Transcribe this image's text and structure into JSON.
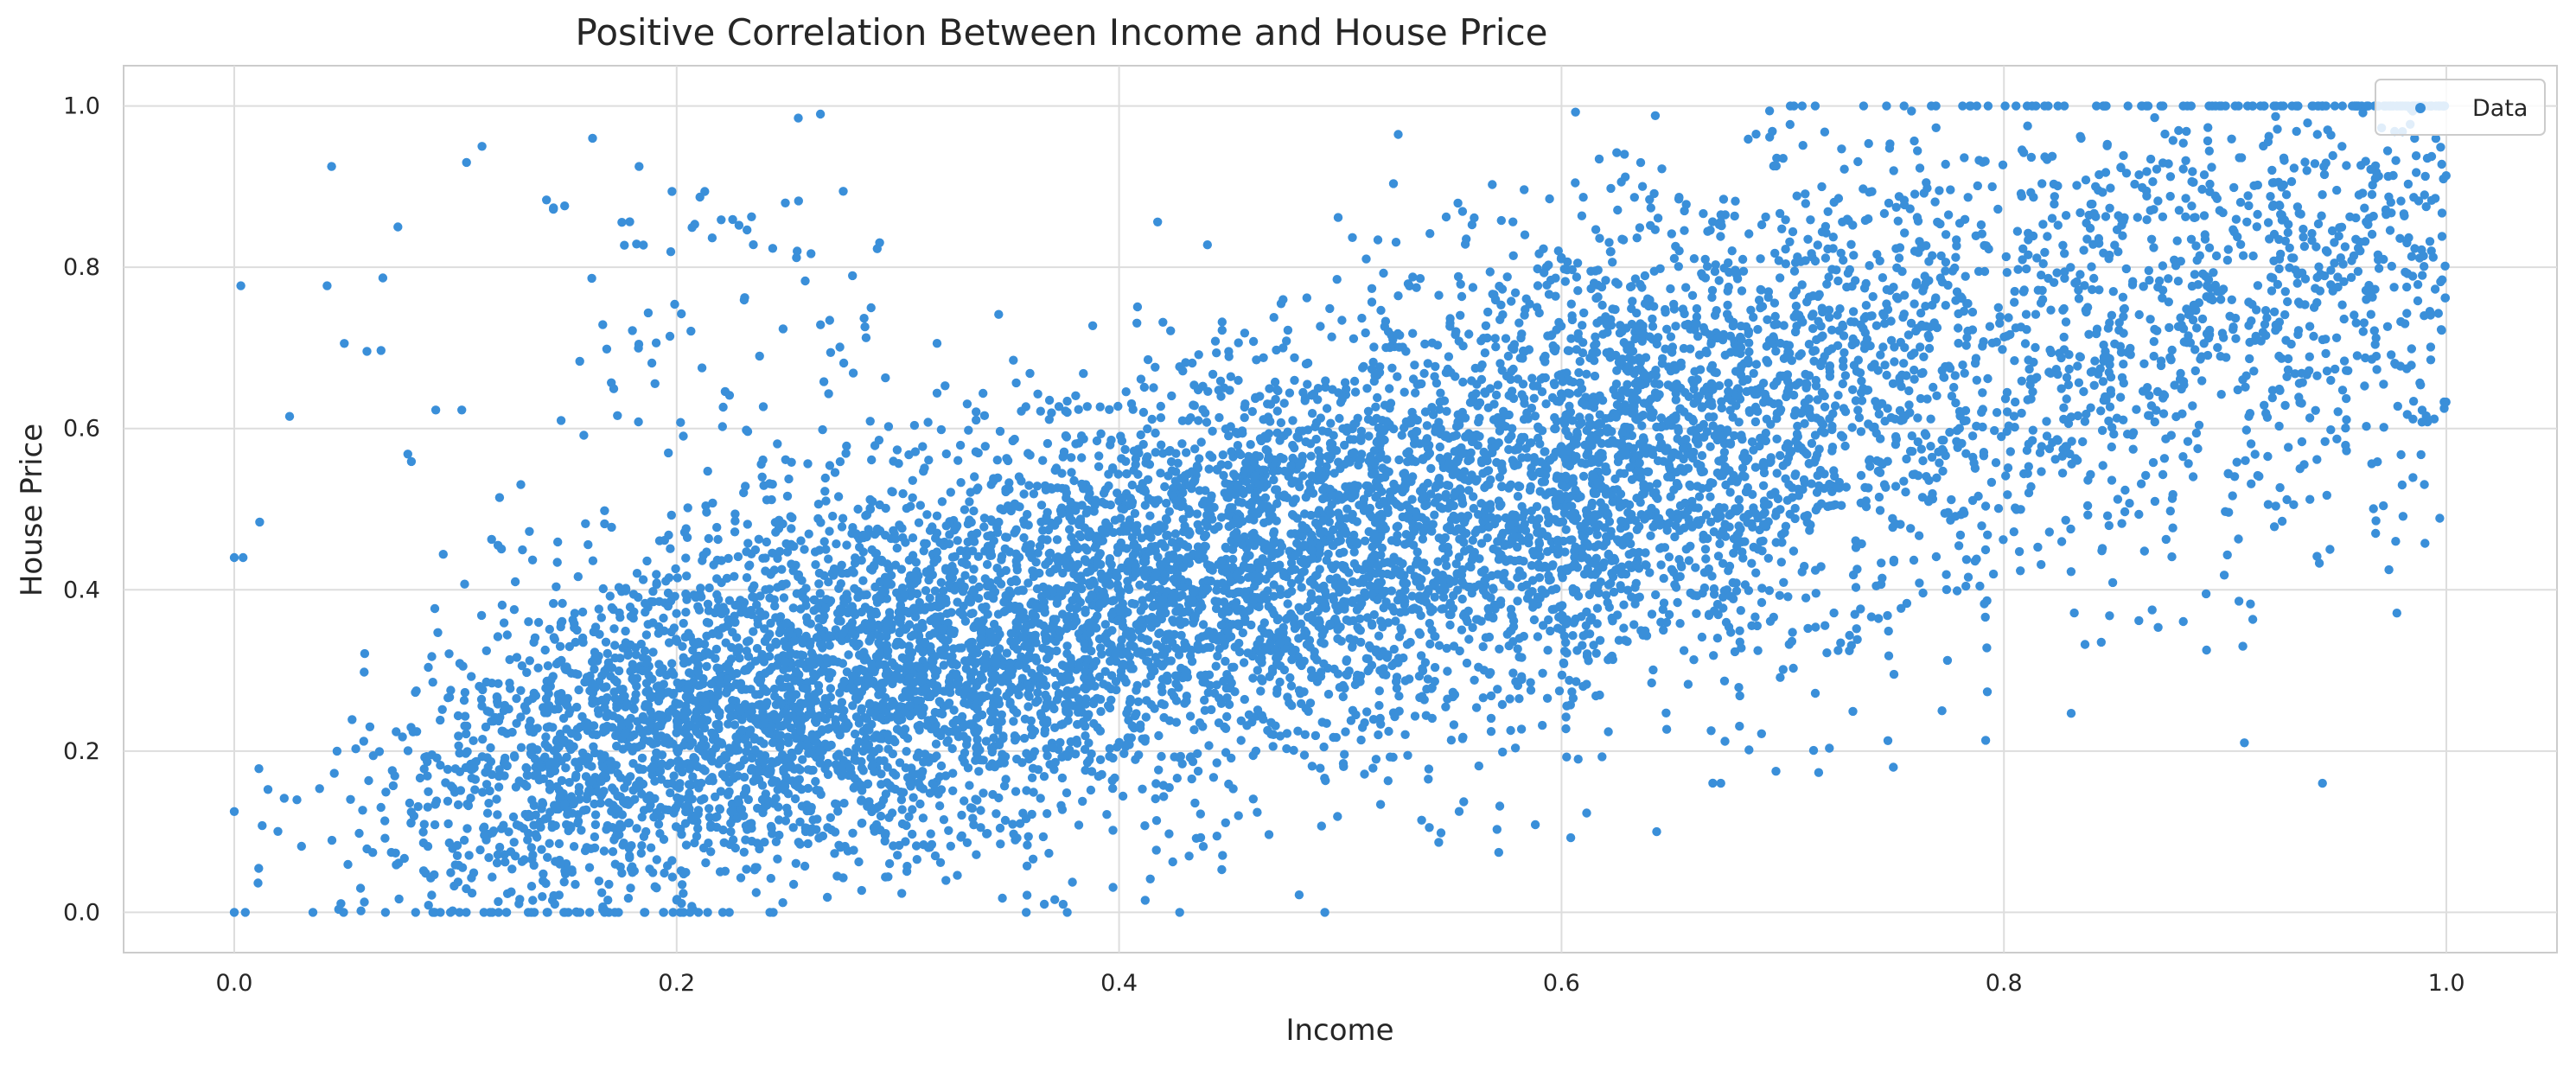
{
  "chart_data": {
    "type": "scatter",
    "title": "Positive Correlation Between Income and House Price",
    "xlabel": "Income",
    "ylabel": "House Price",
    "xlim": [
      -0.05,
      1.05
    ],
    "ylim": [
      -0.05,
      1.05
    ],
    "xticks": [
      "0.0",
      "0.2",
      "0.4",
      "0.6",
      "0.8",
      "1.0"
    ],
    "yticks": [
      "0.0",
      "0.2",
      "0.4",
      "0.6",
      "0.8",
      "1.0"
    ],
    "grid": true,
    "legend_position": "top-right",
    "series": [
      {
        "name": "Data",
        "color": "#3a8fd9",
        "point_count": 9600,
        "trend": {
          "slope": 0.78,
          "intercept": 0.07
        },
        "x": [
          0.0,
          0.004,
          0.0,
          0.003,
          0.005,
          0.044,
          0.042,
          0.074,
          0.105,
          0.149,
          0.155,
          0.214,
          0.248,
          0.493,
          0.643,
          0.672,
          0.75,
          0.772,
          0.844,
          0.867,
          0.908,
          0.944,
          0.968,
          0.98,
          0.999,
          0.112,
          0.162,
          0.183,
          0.255,
          0.265
        ],
        "y": [
          0.44,
          0.44,
          0.125,
          0.777,
          0.0,
          0.925,
          0.777,
          0.85,
          0.93,
          0.0,
          0.0,
          0.0,
          0.012,
          0.0,
          0.1,
          0.16,
          0.18,
          0.25,
          0.335,
          0.375,
          0.33,
          0.16,
          0.47,
          0.53,
          0.625,
          0.95,
          0.96,
          0.925,
          0.985,
          0.99
        ]
      }
    ]
  }
}
